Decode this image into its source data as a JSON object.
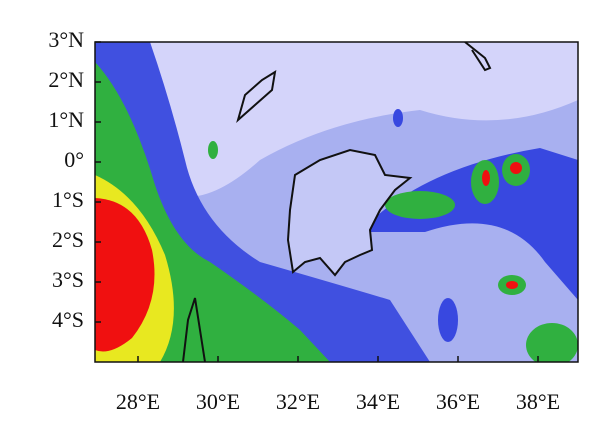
{
  "map": {
    "xlim": [
      27,
      39
    ],
    "ylim": [
      -5,
      3
    ],
    "xticks": [
      {
        "value": 28,
        "label": "28°E"
      },
      {
        "value": 30,
        "label": "30°E"
      },
      {
        "value": 32,
        "label": "32°E"
      },
      {
        "value": 34,
        "label": "34°E"
      },
      {
        "value": 36,
        "label": "36°E"
      },
      {
        "value": 38,
        "label": "38°E"
      }
    ],
    "yticks": [
      {
        "value": 3,
        "label": "3°N"
      },
      {
        "value": 2,
        "label": "2°N"
      },
      {
        "value": 1,
        "label": "1°N"
      },
      {
        "value": 0,
        "label": "0°"
      },
      {
        "value": -1,
        "label": "1°S"
      },
      {
        "value": -2,
        "label": "2°S"
      },
      {
        "value": -3,
        "label": "3°S"
      },
      {
        "value": -4,
        "label": "4°S"
      }
    ]
  }
}
